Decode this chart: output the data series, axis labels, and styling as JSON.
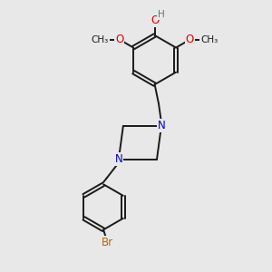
{
  "bg_color": "#e8e8e8",
  "bond_color": "#1a1a1a",
  "atom_colors": {
    "O": "#dd0000",
    "N": "#0000cc",
    "Br": "#bb6600",
    "H": "#557788",
    "C": "#1a1a1a"
  },
  "bond_width": 1.4,
  "font_size_atoms": 8.5,
  "font_size_label": 7.5
}
